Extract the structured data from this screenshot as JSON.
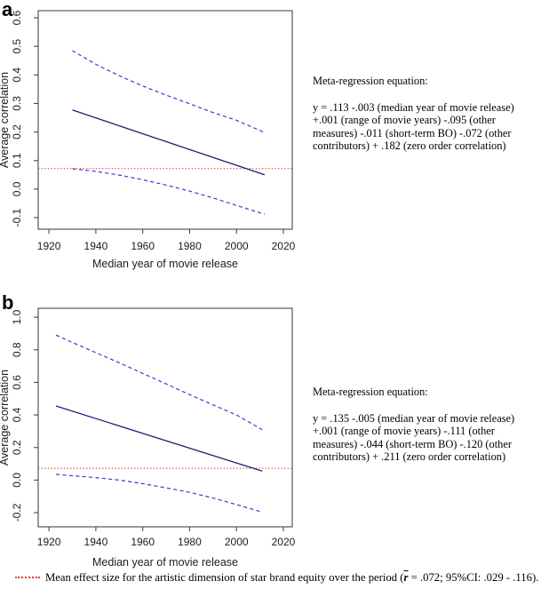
{
  "figure": {
    "background": "#ffffff"
  },
  "panels": [
    {
      "label": "a",
      "annotation_title": "Meta-regression equation:",
      "annotation_body": "y = .113 -.003 (median year of movie release) +.001 (range of movie years) -.095 (other measures) -.011 (short-term BO) -.072 (other contributors) + .182 (zero order correlation)"
    },
    {
      "label": "b",
      "annotation_title": "Meta-regression equation:",
      "annotation_body": "y = .135 -.005 (median year of movie release) +.001 (range of movie years) -.111 (other measures) -.044 (short-term BO) -.120 (other contributors) + .211 (zero order correlation)"
    }
  ],
  "caption": {
    "prefix": "Mean effect size for the artistic dimension of star brand equity over the period (",
    "symbol": "r",
    "suffix": " = .072; 95%CI: .029 - .116).",
    "swatch_color": "#e23b3b"
  },
  "chart_data": [
    {
      "type": "line",
      "panel": "a",
      "xlabel": "Median year of movie release",
      "ylabel": "Average correlation",
      "xlim": [
        1915.4,
        2023.8
      ],
      "ylim": [
        -0.1404,
        0.6249
      ],
      "xticks": [
        1920,
        1940,
        1960,
        1980,
        2000,
        2020
      ],
      "xtick_labels": [
        "1920",
        "1940",
        "1960",
        "1980",
        "2000",
        "2020"
      ],
      "yticks": [
        -0.1,
        0.0,
        0.1,
        0.2,
        0.3,
        0.4,
        0.5,
        0.6
      ],
      "ytick_labels": [
        "-0.1",
        "0.0",
        "0.1",
        "0.2",
        "0.3",
        "0.4",
        "0.5",
        "0.6"
      ],
      "grid": false,
      "legend": "none",
      "axis_color": "#474747",
      "series": [
        {
          "name": "meta-regression prediction",
          "style": "solid",
          "color": "#1c1c7a",
          "width": 1.3,
          "points": [
            [
              1930,
              0.277
            ],
            [
              2012,
              0.05
            ]
          ]
        },
        {
          "name": "upper 95% CI",
          "style": "dashed",
          "color": "#3b3bd6",
          "width": 1.2,
          "points": [
            [
              1930,
              0.485
            ],
            [
              1940,
              0.437
            ],
            [
              1950,
              0.397
            ],
            [
              1960,
              0.361
            ],
            [
              1970,
              0.329
            ],
            [
              1980,
              0.299
            ],
            [
              1990,
              0.268
            ],
            [
              2000,
              0.241
            ],
            [
              2012,
              0.198
            ]
          ]
        },
        {
          "name": "lower 95% CI",
          "style": "dashed",
          "color": "#3b3bd6",
          "width": 1.2,
          "points": [
            [
              1930,
              0.071
            ],
            [
              1940,
              0.062
            ],
            [
              1950,
              0.049
            ],
            [
              1960,
              0.033
            ],
            [
              1970,
              0.014
            ],
            [
              1980,
              -0.007
            ],
            [
              1990,
              -0.031
            ],
            [
              2000,
              -0.057
            ],
            [
              2012,
              -0.088
            ]
          ]
        }
      ],
      "reference_line": {
        "y": 0.072,
        "style": "dotted",
        "color": "#e23b3b",
        "label": "mean effect size"
      }
    },
    {
      "type": "line",
      "panel": "b",
      "xlabel": "Median year of movie release",
      "ylabel": "Average correlation",
      "xlim": [
        1915.4,
        2023.8
      ],
      "ylim": [
        -0.287,
        1.055
      ],
      "xticks": [
        1920,
        1940,
        1960,
        1980,
        2000,
        2020
      ],
      "xtick_labels": [
        "1920",
        "1940",
        "1960",
        "1980",
        "2000",
        "2020"
      ],
      "yticks": [
        -0.2,
        0.0,
        0.2,
        0.4,
        0.6,
        0.8,
        1.0
      ],
      "ytick_labels": [
        "-0.2",
        "0.0",
        "0.2",
        "0.4",
        "0.6",
        "0.8",
        "1.0"
      ],
      "grid": false,
      "legend": "none",
      "axis_color": "#474747",
      "series": [
        {
          "name": "meta-regression prediction",
          "style": "solid",
          "color": "#1c1c7a",
          "width": 1.3,
          "points": [
            [
              1923,
              0.455
            ],
            [
              2011,
              0.055
            ]
          ]
        },
        {
          "name": "upper 95% CI",
          "style": "dashed",
          "color": "#3b3bd6",
          "width": 1.2,
          "points": [
            [
              1923,
              0.89
            ],
            [
              1930,
              0.845
            ],
            [
              1940,
              0.782
            ],
            [
              1950,
              0.72
            ],
            [
              1960,
              0.655
            ],
            [
              1970,
              0.59
            ],
            [
              1980,
              0.525
            ],
            [
              1990,
              0.462
            ],
            [
              2000,
              0.4
            ],
            [
              2011,
              0.31
            ]
          ]
        },
        {
          "name": "lower 95% CI",
          "style": "dashed",
          "color": "#3b3bd6",
          "width": 1.2,
          "points": [
            [
              1923,
              0.035
            ],
            [
              1940,
              0.015
            ],
            [
              1950,
              0.0
            ],
            [
              1960,
              -0.022
            ],
            [
              1970,
              -0.048
            ],
            [
              1980,
              -0.075
            ],
            [
              1990,
              -0.11
            ],
            [
              2000,
              -0.15
            ],
            [
              2011,
              -0.197
            ]
          ]
        }
      ],
      "reference_line": {
        "y": 0.072,
        "style": "dotted",
        "color": "#e23b3b",
        "label": "mean effect size"
      }
    }
  ]
}
